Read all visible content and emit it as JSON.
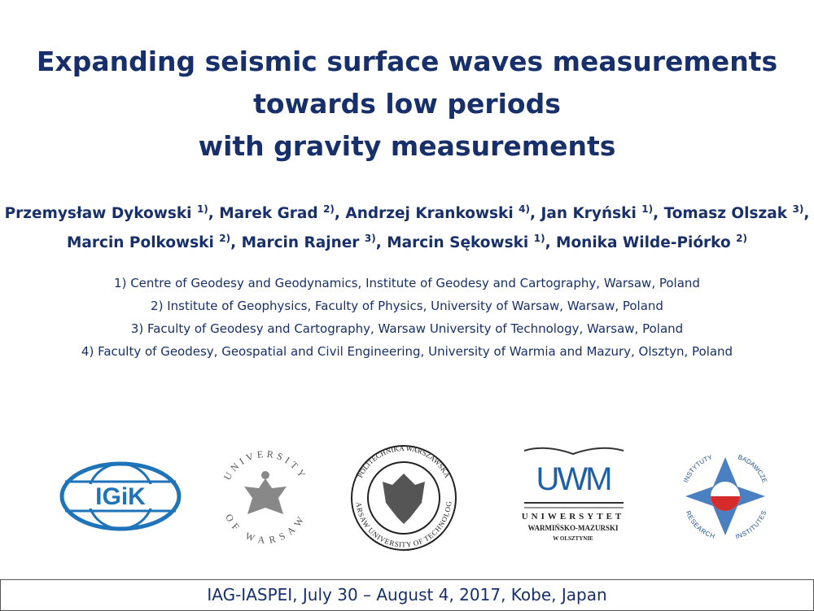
{
  "title_lines": [
    "Expanding seismic surface waves measurements",
    "towards low periods",
    "with gravity measurements"
  ],
  "author_separator": ", ",
  "author_lines": [
    [
      {
        "name": "Przemysław Dykowski",
        "affiliation": "1)"
      },
      {
        "name": "Marek Grad",
        "affiliation": "2)"
      },
      {
        "name": "Andrzej Krankowski",
        "affiliation": "4)"
      },
      {
        "name": "Jan Kryński",
        "affiliation": "1)"
      },
      {
        "name": "Tomasz Olszak",
        "affiliation": "3)"
      }
    ],
    [
      {
        "name": "Marcin Polkowski",
        "affiliation": "2)"
      },
      {
        "name": "Marcin Rajner",
        "affiliation": "3)"
      },
      {
        "name": "Marcin Sękowski",
        "affiliation": "1)"
      },
      {
        "name": "Monika Wilde-Piórko",
        "affiliation": "2)"
      }
    ]
  ],
  "affiliations": [
    "1) Centre of Geodesy and Geodynamics, Institute of Geodesy and Cartography, Warsaw, Poland",
    "2) Institute of Geophysics, Faculty of Physics, University of Warsaw, Warsaw, Poland",
    "3) Faculty of Geodesy and Cartography, Warsaw University of Technology, Warsaw, Poland",
    "4) Faculty of Geodesy, Geospatial and Civil Engineering, University of Warmia and Mazury, Olsztyn, Poland"
  ],
  "logos": {
    "igik": "IGiK",
    "uw_top": "UNIVERSITY",
    "uw_bottom": "OF WARSAW",
    "pw_top": "POLITECHNIKA WARSZAWSKA",
    "pw_bottom": "WARSAW UNIVERSITY OF TECHNOLOGY",
    "uwm_mark": "UWM",
    "uwm_line1": "UNIWERSYTET",
    "uwm_line2": "WARMIŃSKO-MAZURSKI",
    "uwm_line3": "W OLSZTYNIE",
    "ib_top_left": "INSTYTUTY",
    "ib_top_right": "BADAWCZE",
    "ib_bottom_left": "RESEARCH",
    "ib_bottom_right": "INSTITUTES"
  },
  "footer": "IAG-IASPEI, July 30 – August 4, 2017, Kobe, Japan"
}
